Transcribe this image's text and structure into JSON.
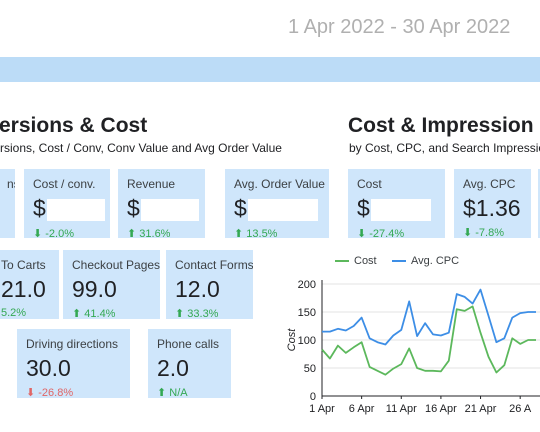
{
  "header": {
    "date_range": "1 Apr 2022 - 30 Apr 2022"
  },
  "left_section": {
    "title": "ersions & Cost",
    "subtitle": "rsions, Cost / Conv, Conv Value and Avg Order Value",
    "cards": [
      {
        "label": "ns",
        "value": "",
        "change": ""
      },
      {
        "label": "Cost / conv.",
        "value": "$",
        "change": "⬇ -2.0%"
      },
      {
        "label": "Revenue",
        "value": "$",
        "change": "⬆ 31.6%"
      },
      {
        "label": "Avg. Order Value",
        "value": "$",
        "change": "⬆ 13.5%"
      },
      {
        "label": "To Carts",
        "value": "21.0",
        "change": "5.2%"
      },
      {
        "label": "Checkout Pages",
        "value": "99.0",
        "change": "⬆ 41.4%"
      },
      {
        "label": "Contact Forms",
        "value": "12.0",
        "change": "⬆ 33.3%"
      },
      {
        "label": "Driving directions",
        "value": "30.0",
        "change": "⬇ -26.8%"
      },
      {
        "label": "Phone calls",
        "value": "2.0",
        "change": "⬆ N/A"
      }
    ]
  },
  "right_section": {
    "title": "Cost & Impression S",
    "subtitle": "by Cost, CPC, and Search Impression",
    "cards": [
      {
        "label": "Cost",
        "value": "$",
        "change": "⬇ -27.4%"
      },
      {
        "label": "Avg. CPC",
        "value": "$1.36",
        "change": "⬇ -7.8%"
      }
    ]
  },
  "colors": {
    "card_bg": "#cfe6fb",
    "banner": "#bcdcf7",
    "cost_line": "#5cb85c",
    "cpc_line": "#3d8ee6",
    "positive": "#34a853",
    "negative": "#e06666"
  },
  "chart_data": {
    "type": "line",
    "legend": [
      "Cost",
      "Avg. CPC"
    ],
    "ylabel": "Cost",
    "yticks": [
      "0",
      "50",
      "100",
      "150",
      "200"
    ],
    "ylim": [
      0,
      200
    ],
    "xticks": [
      "1 Apr",
      "6 Apr",
      "11 Apr",
      "16 Apr",
      "21 Apr",
      "26 A"
    ],
    "x": [
      "1 Apr",
      "2 Apr",
      "3 Apr",
      "4 Apr",
      "5 Apr",
      "6 Apr",
      "7 Apr",
      "8 Apr",
      "9 Apr",
      "10 Apr",
      "11 Apr",
      "12 Apr",
      "13 Apr",
      "14 Apr",
      "15 Apr",
      "16 Apr",
      "17 Apr",
      "18 Apr",
      "19 Apr",
      "20 Apr",
      "21 Apr",
      "22 Apr",
      "23 Apr",
      "24 Apr",
      "25 Apr",
      "26 Apr",
      "27 Apr",
      "28 Apr"
    ],
    "series": [
      {
        "name": "Cost",
        "values": [
          83,
          67,
          90,
          77,
          87,
          96,
          52,
          45,
          38,
          49,
          57,
          85,
          50,
          45,
          45,
          44,
          63,
          155,
          152,
          160,
          113,
          70,
          42,
          55,
          103,
          93,
          100,
          100
        ]
      },
      {
        "name": "Avg. CPC",
        "values": [
          115,
          115,
          120,
          117,
          125,
          140,
          103,
          96,
          92,
          108,
          118,
          169,
          107,
          130,
          110,
          108,
          113,
          182,
          177,
          165,
          190,
          143,
          96,
          103,
          140,
          148,
          150,
          150
        ]
      }
    ]
  }
}
